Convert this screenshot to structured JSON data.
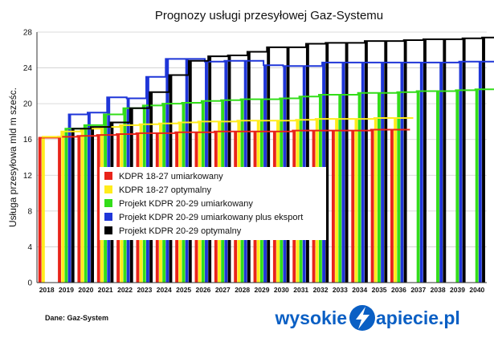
{
  "chart_data": {
    "type": "bar",
    "title": "Prognozy usługi przesyłowej Gaz-Systemu",
    "ylabel": "Usługa przesyłowa mld m sześc.",
    "xlabel": "",
    "ylim": [
      0,
      28
    ],
    "yticks": [
      0,
      4,
      8,
      12,
      16,
      20,
      24,
      28
    ],
    "grid": true,
    "legend_position": "center-left",
    "categories": [
      "2018",
      "2019",
      "2020",
      "2021",
      "2022",
      "2023",
      "2024",
      "2025",
      "2026",
      "2027",
      "2028",
      "2029",
      "2030",
      "2031",
      "2032",
      "2033",
      "2034",
      "2035",
      "2036",
      "2037",
      "2038",
      "2039",
      "2040"
    ],
    "series": [
      {
        "name": "KDPR 18-27 umiarkowany",
        "color": "#e8241a",
        "values": [
          16.2,
          16.3,
          16.4,
          16.5,
          16.6,
          16.7,
          16.7,
          16.8,
          16.8,
          16.9,
          16.9,
          16.9,
          16.9,
          17.0,
          17.0,
          17.0,
          17.0,
          17.1,
          17.1,
          null,
          null,
          null,
          null
        ]
      },
      {
        "name": "KDPR 18-27 optymalny",
        "color": "#ffec1c",
        "values": [
          16.3,
          16.9,
          17.2,
          17.4,
          17.6,
          17.7,
          17.8,
          17.9,
          18.0,
          18.0,
          18.1,
          18.1,
          18.1,
          18.2,
          18.3,
          18.3,
          18.3,
          18.4,
          18.4,
          null,
          null,
          null,
          null
        ]
      },
      {
        "name": "Projekt KDPR 20-29 umiarkowany",
        "color": "#33dd1a",
        "values": [
          null,
          17.2,
          17.6,
          18.8,
          19.5,
          19.8,
          20.0,
          20.1,
          20.3,
          20.4,
          20.5,
          20.5,
          20.6,
          20.8,
          21.0,
          21.0,
          21.2,
          21.2,
          21.3,
          21.4,
          21.4,
          21.5,
          21.6
        ]
      },
      {
        "name": "Projekt KDPR 20-29 umiarkowany plus eksport",
        "color": "#1f36d8",
        "values": [
          null,
          18.8,
          19.0,
          20.7,
          20.6,
          23.0,
          25.0,
          25.0,
          24.7,
          24.8,
          24.8,
          24.3,
          24.2,
          24.2,
          24.6,
          24.6,
          24.6,
          24.6,
          24.6,
          24.6,
          24.6,
          24.7,
          24.7
        ]
      },
      {
        "name": "Projekt KDPR 20-29 optymalny",
        "color": "#000000",
        "values": [
          null,
          17.2,
          17.4,
          17.9,
          19.5,
          21.3,
          23.2,
          24.8,
          25.3,
          25.4,
          25.8,
          26.3,
          26.3,
          26.7,
          26.8,
          26.8,
          27.0,
          27.0,
          27.1,
          27.2,
          27.2,
          27.3,
          27.4
        ]
      }
    ]
  },
  "footer": {
    "source": "Dane: Gaz-System",
    "brand_left": "wysokie",
    "brand_right": "apiecie.pl"
  }
}
